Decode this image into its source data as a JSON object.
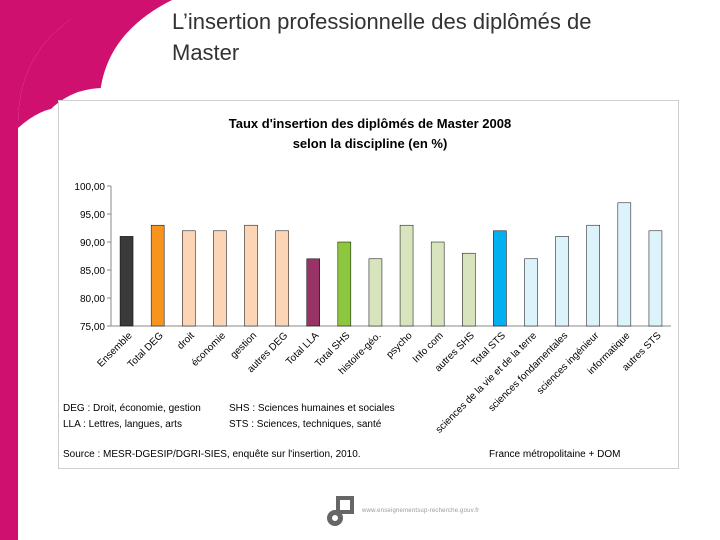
{
  "slide": {
    "title_line1": "L’insertion professionnelle des diplômés de",
    "title_line2": "Master",
    "accent_color": "#d0106f"
  },
  "footer": {
    "url": "www.enseignementsup-recherche.gouv.fr",
    "logo_icon": "ministry-logo-icon"
  },
  "chart_data": {
    "type": "bar",
    "title_line1": "Taux d'insertion des diplômés de Master 2008",
    "title_line2": "selon la discipline (en %)",
    "categories": [
      "Ensemble",
      "Total DEG",
      "droit",
      "économie",
      "gestion",
      "autres DEG",
      "Total LLA",
      "Total SHS",
      "histoire-géo.",
      "psycho",
      "Info com",
      "autres SHS",
      "Total STS",
      "sciences de la vie et de la terre",
      "sciences fondamentales",
      "sciences ingénieur",
      "informatique",
      "autres STS"
    ],
    "values": [
      91,
      93,
      92,
      92,
      93,
      92,
      87,
      90,
      87,
      93,
      90,
      88,
      92,
      87,
      91,
      93,
      97,
      92
    ],
    "colors": [
      "#3a3a3a",
      "#f7941d",
      "#fbd5b5",
      "#fbd5b5",
      "#fbd5b5",
      "#fbd5b5",
      "#993366",
      "#8dc63f",
      "#d7e4bd",
      "#d7e4bd",
      "#d7e4bd",
      "#d7e4bd",
      "#00b0f0",
      "#ddf3fb",
      "#ddf3fb",
      "#ddf3fb",
      "#ddf3fb",
      "#ddf3fb"
    ],
    "ylim": [
      75,
      100
    ],
    "yticks": [
      "75,00",
      "80,00",
      "85,00",
      "90,00",
      "95,00",
      "100,00"
    ],
    "xlabel": "",
    "ylabel": "",
    "legend": {
      "deg": "DEG : Droit, économie, gestion",
      "lla": "LLA : Lettres, langues, arts",
      "shs": "SHS : Sciences humaines et sociales",
      "sts": "STS : Sciences, techniques, santé"
    },
    "source": "Source : MESR-DGESIP/DGRI-SIES, enquête sur l'insertion, 2010.",
    "scope": "France métropolitaine + DOM"
  }
}
